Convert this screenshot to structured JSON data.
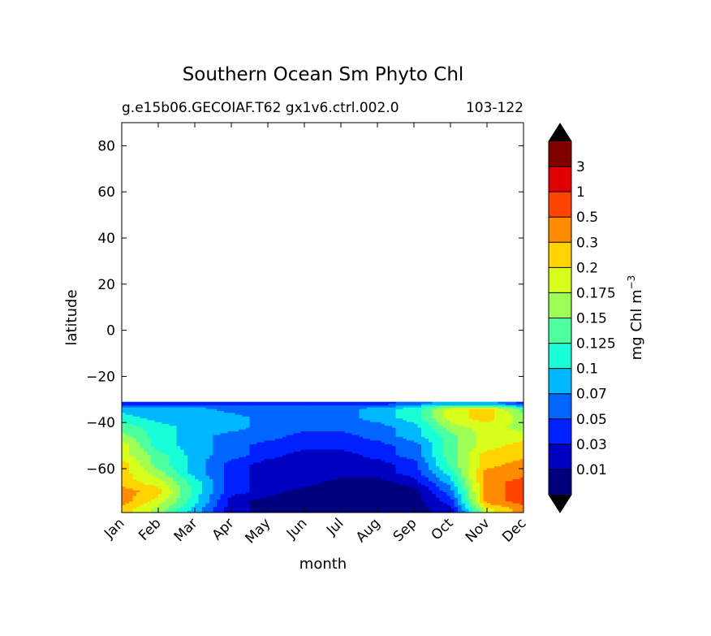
{
  "chart_data": {
    "type": "heatmap",
    "title": "Southern Ocean Sm Phyto Chl",
    "subtitle_left": "g.e15b06.GECOIAF.T62 gx1v6.ctrl.002.0",
    "subtitle_right": "103-122",
    "xlabel": "month",
    "ylabel": "latitude",
    "ylim": [
      -79,
      90
    ],
    "x_categories": [
      "Jan",
      "Feb",
      "Mar",
      "Apr",
      "May",
      "Jun",
      "Jul",
      "Aug",
      "Sep",
      "Oct",
      "Nov",
      "Dec"
    ],
    "y_ticks": [
      80,
      60,
      40,
      20,
      0,
      -20,
      -40,
      -60
    ],
    "y_tick_labels": [
      "80",
      "60",
      "40",
      "20",
      "0",
      "−20",
      "−40",
      "−60"
    ],
    "data_lat_range": [
      -79,
      -31
    ],
    "grid": false,
    "colorbar": {
      "label": "mg Chl m",
      "label_sup": "−3",
      "levels": [
        "0.01",
        "0.03",
        "0.05",
        "0.07",
        "0.1",
        "0.125",
        "0.15",
        "0.175",
        "0.2",
        "0.3",
        "0.5",
        "1",
        "3"
      ],
      "colors": [
        "#00007f",
        "#0000c0",
        "#0020ff",
        "#0066ff",
        "#00b8ff",
        "#18ffd8",
        "#4dff9f",
        "#9dff56",
        "#d8ff1c",
        "#ffd400",
        "#ff8c00",
        "#ff4400",
        "#e00000",
        "#800000"
      ],
      "extend": "both"
    },
    "lat_rows": [
      -78,
      -74,
      -70,
      -66,
      -62,
      -58,
      -54,
      -50,
      -46,
      -42,
      -38,
      -34,
      -32
    ],
    "values": [
      [
        9,
        7,
        4,
        1,
        0,
        0,
        0,
        0,
        0,
        1,
        8,
        10
      ],
      [
        10,
        8,
        5,
        1,
        0,
        0,
        0,
        0,
        0,
        2,
        10,
        11
      ],
      [
        10,
        9,
        5,
        2,
        1,
        0,
        0,
        0,
        0,
        3,
        10,
        11
      ],
      [
        9,
        8,
        5,
        2,
        1,
        1,
        0,
        0,
        1,
        4,
        10,
        11
      ],
      [
        9,
        7,
        4,
        2,
        1,
        1,
        1,
        1,
        2,
        5,
        10,
        10
      ],
      [
        9,
        6,
        4,
        2,
        1,
        1,
        1,
        1,
        2,
        6,
        9,
        10
      ],
      [
        8,
        6,
        4,
        3,
        2,
        1,
        1,
        2,
        3,
        6,
        9,
        9
      ],
      [
        8,
        5,
        4,
        3,
        2,
        2,
        2,
        2,
        3,
        6,
        8,
        9
      ],
      [
        7,
        5,
        4,
        3,
        3,
        2,
        2,
        3,
        4,
        6,
        8,
        8
      ],
      [
        6,
        5,
        4,
        4,
        3,
        3,
        3,
        3,
        4,
        7,
        8,
        7
      ],
      [
        5,
        4,
        4,
        4,
        3,
        3,
        3,
        4,
        5,
        8,
        9,
        7
      ],
      [
        4,
        4,
        4,
        3,
        3,
        3,
        3,
        4,
        5,
        8,
        9,
        6
      ],
      [
        2,
        2,
        2,
        2,
        2,
        2,
        2,
        2,
        3,
        4,
        4,
        2
      ]
    ]
  }
}
